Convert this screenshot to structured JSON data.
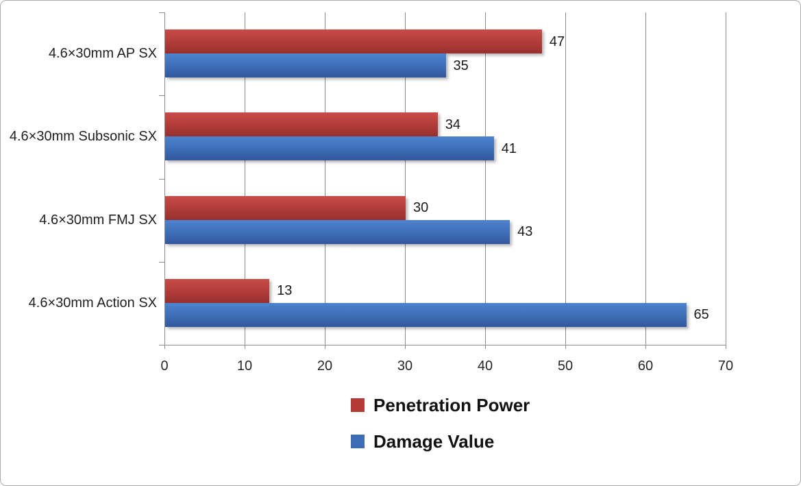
{
  "chart_data": {
    "type": "bar",
    "orientation": "horizontal",
    "title": "",
    "xlabel": "",
    "ylabel": "",
    "categories": [
      "4.6×30mm AP SX",
      "4.6×30mm Subsonic SX",
      "4.6×30mm FMJ SX",
      "4.6×30mm Action SX"
    ],
    "series": [
      {
        "name": "Penetration Power",
        "color": "#b43937",
        "gradient": [
          "#c94b48",
          "#af3c39",
          "#97302e"
        ],
        "values": [
          47,
          34,
          30,
          13
        ]
      },
      {
        "name": "Damage Value",
        "color": "#3d6eb5",
        "gradient": [
          "#4c84cd",
          "#3d6db5",
          "#33589b"
        ],
        "values": [
          35,
          41,
          43,
          65
        ]
      }
    ],
    "xlim": [
      0,
      70
    ],
    "x_ticks": [
      0,
      10,
      20,
      30,
      40,
      50,
      60,
      70
    ],
    "grid": true,
    "data_labels": true,
    "legend_position": "bottom"
  },
  "colors": {
    "axis": "#8c8c8c",
    "gridline": "#8c8c8c",
    "background": "#ffffff",
    "frame_border": "#ababab",
    "text": "#1f1f1f"
  }
}
